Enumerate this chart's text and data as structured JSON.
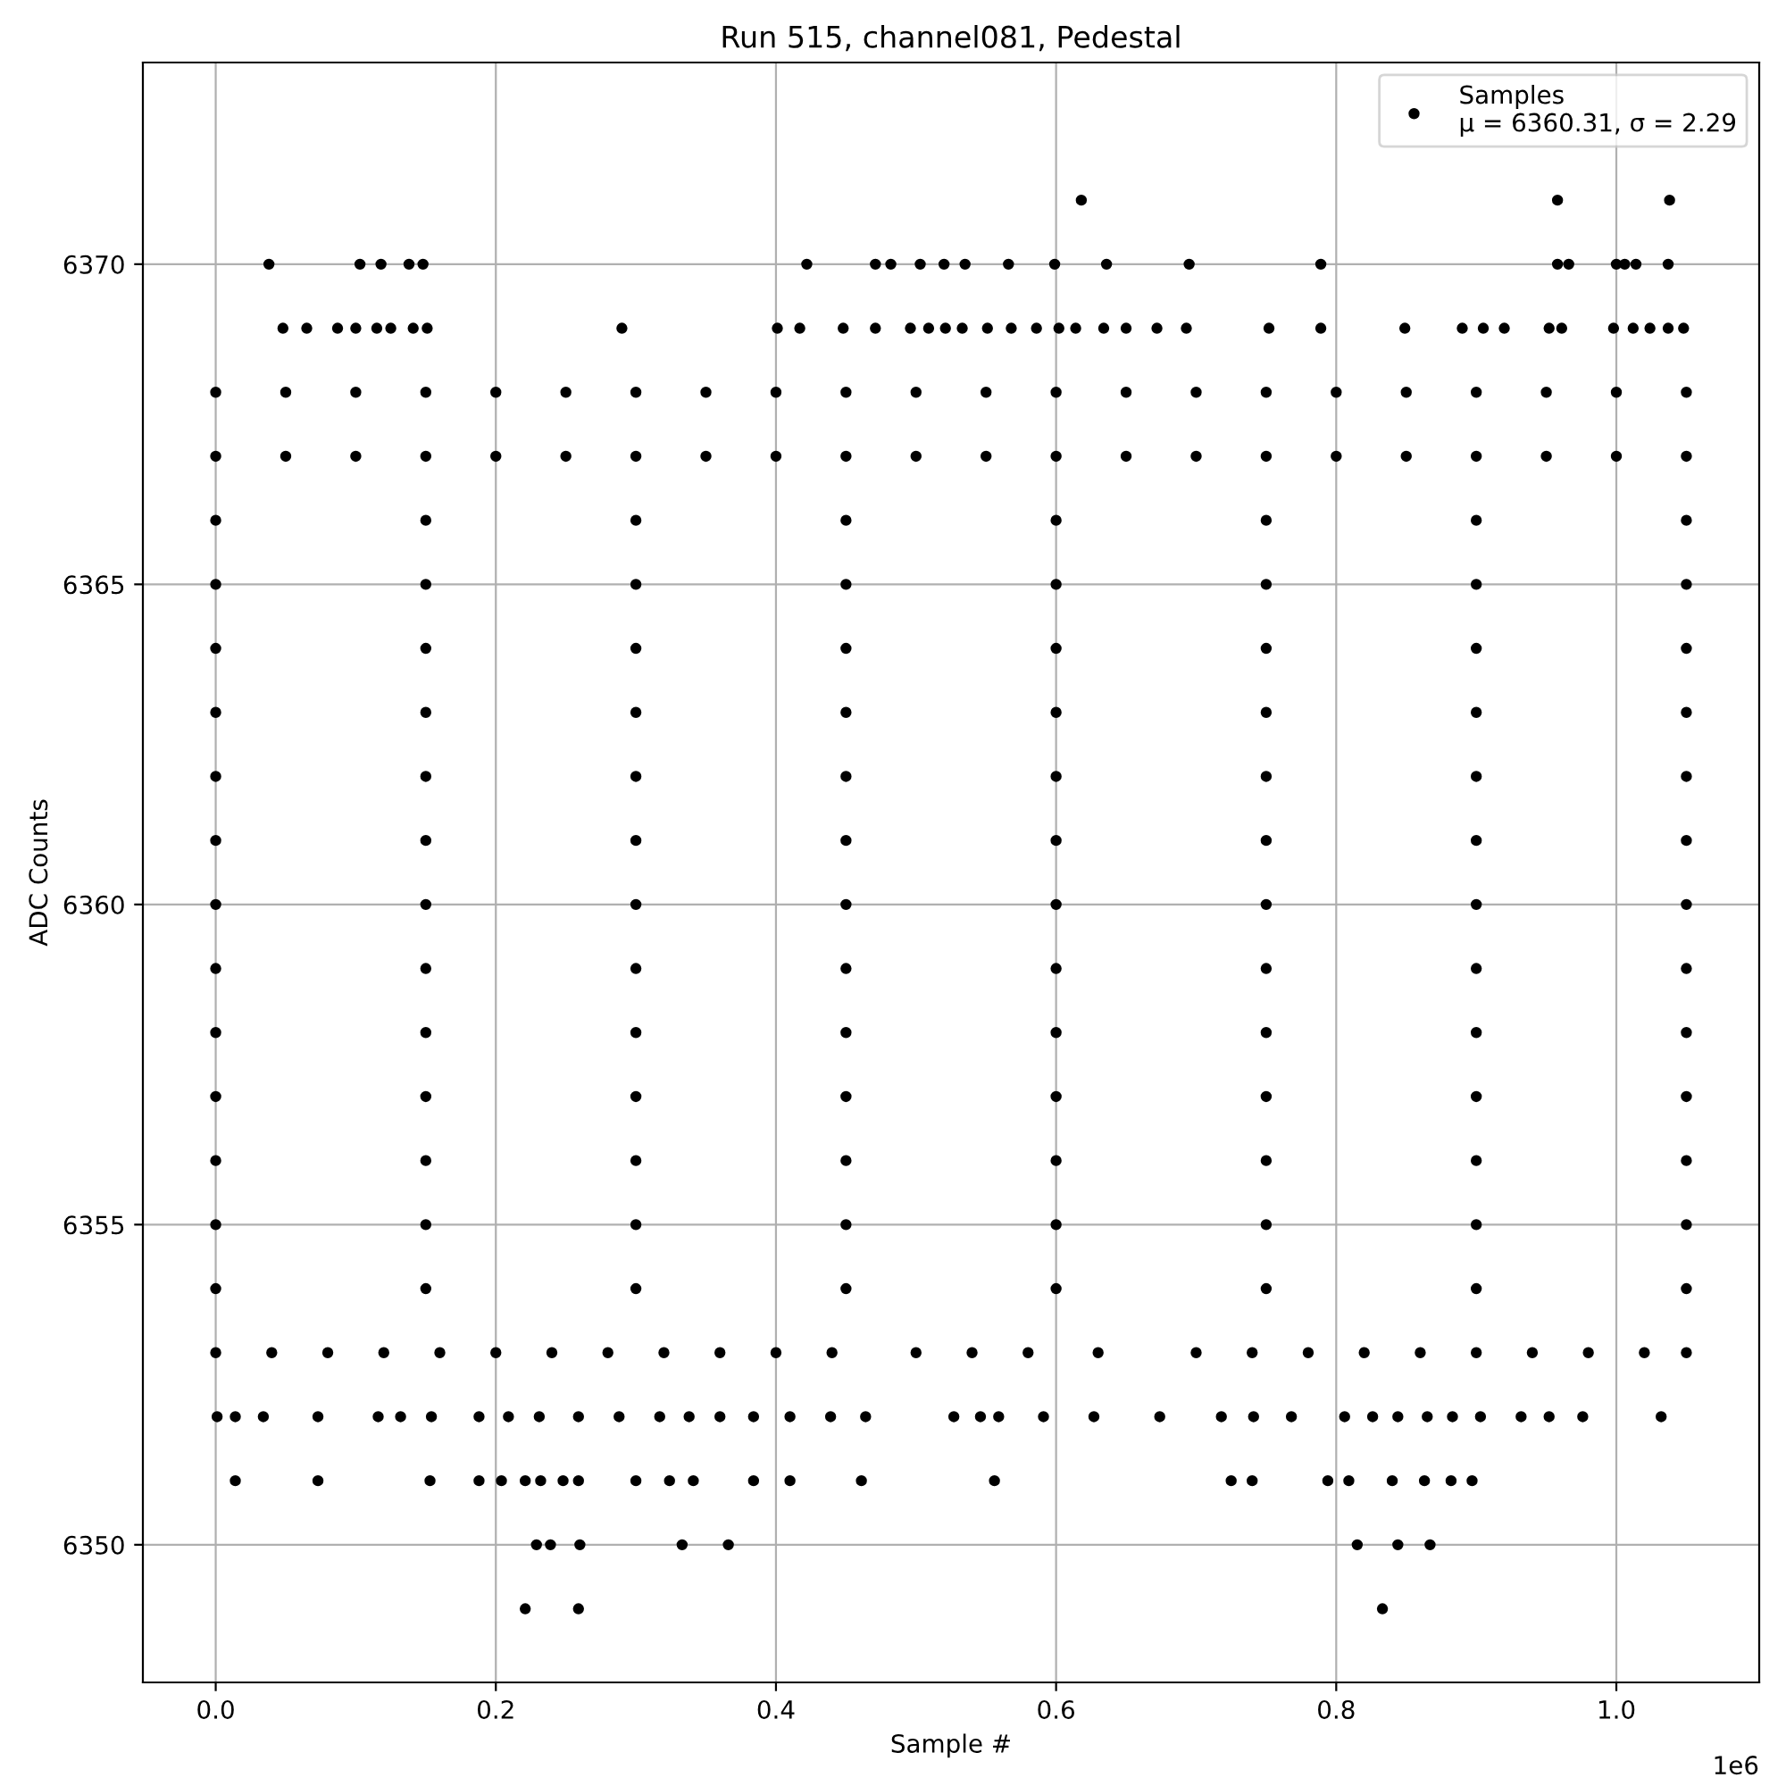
{
  "chart_data": {
    "type": "scatter",
    "title": "Run 515, channel081, Pedestal",
    "xlabel": "Sample #",
    "ylabel": "ADC Counts",
    "xlim": [
      -0.052,
      1.102
    ],
    "ylim": [
      6347.85,
      6373.15
    ],
    "xticks": [
      {
        "value": 0,
        "label": "0.0"
      },
      0.2,
      0.4,
      0.6,
      0.8,
      {
        "value": 1,
        "label": "1.0"
      }
    ],
    "yticks": [
      6350,
      6355,
      6360,
      6365,
      6370
    ],
    "annotations": [
      "1e6"
    ],
    "grid": true,
    "legend": "top right",
    "marker": "circle",
    "series": [
      {
        "name": "Samples\nμ = 6360.31, σ = 2.29",
        "color": "#000000",
        "x": [
          0.618,
          0.958,
          1.038,
          0.038,
          0.103,
          0.118,
          0.138,
          0.148,
          0.422,
          0.471,
          0.482,
          0.503,
          0.52,
          0.535,
          0.566,
          0.599,
          0.636,
          0.695,
          0.789,
          0.958,
          0.966,
          1.0,
          1.006,
          1.014,
          1.037,
          0.048,
          0.065,
          0.087,
          0.1,
          0.115,
          0.125,
          0.141,
          0.151,
          0.29,
          0.401,
          0.417,
          0.448,
          0.471,
          0.496,
          0.509,
          0.521,
          0.533,
          0.551,
          0.568,
          0.586,
          0.602,
          0.614,
          0.634,
          0.65,
          0.672,
          0.693,
          0.752,
          0.789,
          0.849,
          0.89,
          0.905,
          0.92,
          0.952,
          0.961,
          0.998,
          1.012,
          1.024,
          1.037,
          1.048,
          0,
          0.05,
          0.1,
          0.15,
          0.2,
          0.25,
          0.3,
          0.35,
          0.4,
          0.45,
          0.5,
          0.55,
          0.6,
          0.65,
          0.7,
          0.75,
          0.8,
          0.85,
          0.9,
          0.95,
          1.0,
          1.05,
          0,
          0.05,
          0.1,
          0.15,
          0.2,
          0.25,
          0.3,
          0.35,
          0.4,
          0.45,
          0.5,
          0.55,
          0.6,
          0.65,
          0.7,
          0.75,
          0.8,
          0.85,
          0.9,
          0.95,
          1.0,
          1.05,
          0,
          0.15,
          0.3,
          0.45,
          0.6,
          0.75,
          0.9,
          1.05,
          0,
          0.15,
          0.3,
          0.45,
          0.6,
          0.75,
          0.9,
          1.05,
          0,
          0.15,
          0.3,
          0.45,
          0.6,
          0.75,
          0.9,
          1.05,
          0,
          0.15,
          0.3,
          0.45,
          0.6,
          0.75,
          0.9,
          1.05,
          0,
          0.15,
          0.3,
          0.45,
          0.6,
          0.75,
          0.9,
          1.05,
          0,
          0.15,
          0.3,
          0.45,
          0.6,
          0.75,
          0.9,
          1.05,
          0,
          0.15,
          0.3,
          0.45,
          0.6,
          0.75,
          0.9,
          1.05,
          0,
          0.15,
          0.3,
          0.45,
          0.6,
          0.75,
          0.9,
          1.05,
          0,
          0.15,
          0.3,
          0.45,
          0.6,
          0.75,
          0.9,
          1.05,
          0,
          0.15,
          0.3,
          0.45,
          0.6,
          0.75,
          0.9,
          1.05,
          0,
          0.15,
          0.3,
          0.45,
          0.6,
          0.75,
          0.9,
          1.05,
          0,
          0.15,
          0.3,
          0.45,
          0.6,
          0.75,
          0.9,
          1.05,
          0,
          0.15,
          0.3,
          0.45,
          0.6,
          0.75,
          0.9,
          1.05,
          0,
          0.04,
          0.08,
          0.12,
          0.16,
          0.2,
          0.24,
          0.28,
          0.32,
          0.36,
          0.4,
          0.44,
          0.5,
          0.54,
          0.58,
          0.63,
          0.7,
          0.74,
          0.78,
          0.82,
          0.86,
          0.9,
          0.94,
          0.98,
          1.02,
          1.05,
          0.001,
          0.014,
          0.034,
          0.073,
          0.116,
          0.132,
          0.154,
          0.188,
          0.209,
          0.231,
          0.259,
          0.288,
          0.317,
          0.338,
          0.36,
          0.384,
          0.41,
          0.439,
          0.464,
          0.527,
          0.546,
          0.559,
          0.591,
          0.627,
          0.674,
          0.718,
          0.741,
          0.768,
          0.806,
          0.826,
          0.844,
          0.865,
          0.883,
          0.903,
          0.932,
          0.952,
          0.976,
          1.032,
          0.014,
          0.073,
          0.153,
          0.188,
          0.204,
          0.221,
          0.232,
          0.248,
          0.259,
          0.3,
          0.324,
          0.341,
          0.384,
          0.41,
          0.461,
          0.556,
          0.725,
          0.74,
          0.794,
          0.809,
          0.84,
          0.863,
          0.882,
          0.897,
          0.229,
          0.239,
          0.26,
          0.333,
          0.366,
          0.815,
          0.844,
          0.867,
          0.221,
          0.259,
          0.833
        ],
        "values": [
          6371,
          6371,
          6371,
          6370,
          6370,
          6370,
          6370,
          6370,
          6370,
          6370,
          6370,
          6370,
          6370,
          6370,
          6370,
          6370,
          6370,
          6370,
          6370,
          6370,
          6370,
          6370,
          6370,
          6370,
          6370,
          6369,
          6369,
          6369,
          6369,
          6369,
          6369,
          6369,
          6369,
          6369,
          6369,
          6369,
          6369,
          6369,
          6369,
          6369,
          6369,
          6369,
          6369,
          6369,
          6369,
          6369,
          6369,
          6369,
          6369,
          6369,
          6369,
          6369,
          6369,
          6369,
          6369,
          6369,
          6369,
          6369,
          6369,
          6369,
          6369,
          6369,
          6369,
          6369,
          6368,
          6368,
          6368,
          6368,
          6368,
          6368,
          6368,
          6368,
          6368,
          6368,
          6368,
          6368,
          6368,
          6368,
          6368,
          6368,
          6368,
          6368,
          6368,
          6368,
          6368,
          6368,
          6367,
          6367,
          6367,
          6367,
          6367,
          6367,
          6367,
          6367,
          6367,
          6367,
          6367,
          6367,
          6367,
          6367,
          6367,
          6367,
          6367,
          6367,
          6367,
          6367,
          6367,
          6367,
          6366,
          6366,
          6366,
          6366,
          6366,
          6366,
          6366,
          6366,
          6365,
          6365,
          6365,
          6365,
          6365,
          6365,
          6365,
          6365,
          6364,
          6364,
          6364,
          6364,
          6364,
          6364,
          6364,
          6364,
          6363,
          6363,
          6363,
          6363,
          6363,
          6363,
          6363,
          6363,
          6362,
          6362,
          6362,
          6362,
          6362,
          6362,
          6362,
          6362,
          6361,
          6361,
          6361,
          6361,
          6361,
          6361,
          6361,
          6361,
          6360,
          6360,
          6360,
          6360,
          6360,
          6360,
          6360,
          6360,
          6359,
          6359,
          6359,
          6359,
          6359,
          6359,
          6359,
          6359,
          6358,
          6358,
          6358,
          6358,
          6358,
          6358,
          6358,
          6358,
          6357,
          6357,
          6357,
          6357,
          6357,
          6357,
          6357,
          6357,
          6356,
          6356,
          6356,
          6356,
          6356,
          6356,
          6356,
          6356,
          6355,
          6355,
          6355,
          6355,
          6355,
          6355,
          6355,
          6355,
          6354,
          6354,
          6354,
          6354,
          6354,
          6354,
          6354,
          6354,
          6353,
          6353,
          6353,
          6353,
          6353,
          6353,
          6353,
          6353,
          6353,
          6353,
          6353,
          6353,
          6353,
          6353,
          6353,
          6353,
          6353,
          6353,
          6353,
          6353,
          6353,
          6353,
          6353,
          6353,
          6353,
          6353,
          6352,
          6352,
          6352,
          6352,
          6352,
          6352,
          6352,
          6352,
          6352,
          6352,
          6352,
          6352,
          6352,
          6352,
          6352,
          6352,
          6352,
          6352,
          6352,
          6352,
          6352,
          6352,
          6352,
          6352,
          6352,
          6352,
          6352,
          6352,
          6352,
          6352,
          6352,
          6352,
          6352,
          6352,
          6352,
          6352,
          6352,
          6352,
          6351,
          6351,
          6351,
          6351,
          6351,
          6351,
          6351,
          6351,
          6351,
          6351,
          6351,
          6351,
          6351,
          6351,
          6351,
          6351,
          6351,
          6351,
          6351,
          6351,
          6351,
          6351,
          6351,
          6351,
          6350,
          6350,
          6350,
          6350,
          6350,
          6350,
          6350,
          6350,
          6349,
          6349,
          6349
        ]
      }
    ]
  }
}
